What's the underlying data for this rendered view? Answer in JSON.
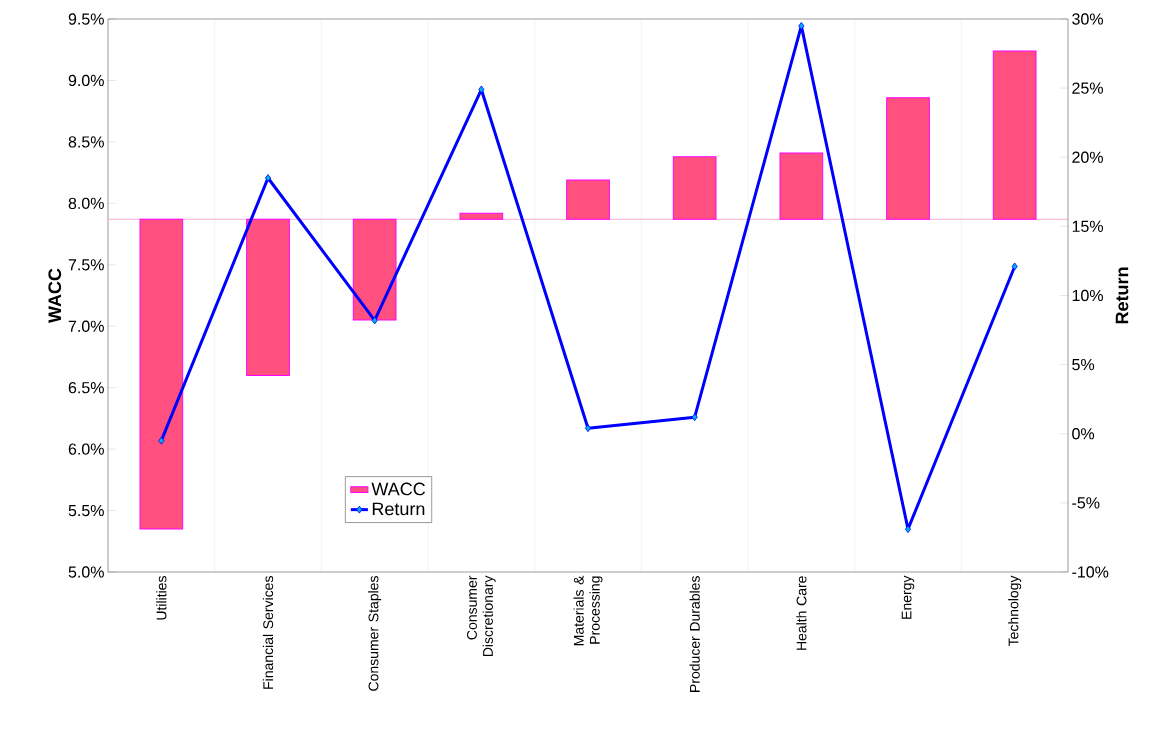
{
  "chart_data": {
    "type": "bar",
    "ylabel": "WACC",
    "y2label": "Return",
    "categories": [
      "Utilities",
      "Financial Services",
      "Consumer Staples",
      "Consumer Discretionary",
      "Materials & Processing",
      "Producer Durables",
      "Health Care",
      "Energy",
      "Technology"
    ],
    "series": [
      {
        "name": "WACC",
        "color": "#ff5080",
        "base": [
          7.87,
          7.87,
          7.87,
          7.87,
          7.87,
          7.87,
          7.87,
          7.87,
          7.87
        ],
        "values": [
          -2.52,
          -1.27,
          -0.82,
          0.05,
          0.32,
          0.51,
          0.54,
          0.99,
          1.37
        ]
      },
      {
        "name": "Return",
        "type": "line",
        "axis": "y2",
        "color": "#0000ff",
        "marker": "diamond",
        "values": [
          -0.5,
          18.5,
          8.2,
          24.9,
          0.4,
          1.2,
          29.5,
          -6.9,
          12.1
        ]
      }
    ],
    "ylim": [
      5.0,
      9.5
    ],
    "yticks": [
      {
        "value": 5.0,
        "label": "5.0%"
      },
      {
        "value": 5.5,
        "label": "5.5%"
      },
      {
        "value": 6.0,
        "label": "6.0%"
      },
      {
        "value": 6.5,
        "label": "6.5%"
      },
      {
        "value": 7.0,
        "label": "7.0%"
      },
      {
        "value": 7.5,
        "label": "7.5%"
      },
      {
        "value": 8.0,
        "label": "8.0%"
      },
      {
        "value": 8.5,
        "label": "8.5%"
      },
      {
        "value": 9.0,
        "label": "9.0%"
      },
      {
        "value": 9.5,
        "label": "9.5%"
      }
    ],
    "y2lim": [
      -10,
      30
    ],
    "y2ticks": [
      {
        "value": -10,
        "label": "-10%"
      },
      {
        "value": -5,
        "label": "-5%"
      },
      {
        "value": 0,
        "label": "0%"
      },
      {
        "value": 5,
        "label": "5%"
      },
      {
        "value": 10,
        "label": "10%"
      },
      {
        "value": 15,
        "label": "15%"
      },
      {
        "value": 20,
        "label": "20%"
      },
      {
        "value": 25,
        "label": "25%"
      },
      {
        "value": 30,
        "label": "30%"
      }
    ],
    "ref_lines": [
      {
        "axis": "y",
        "value": 7.87,
        "color": "#ff99cc"
      }
    ],
    "grid": "x",
    "legend": "bottom"
  }
}
